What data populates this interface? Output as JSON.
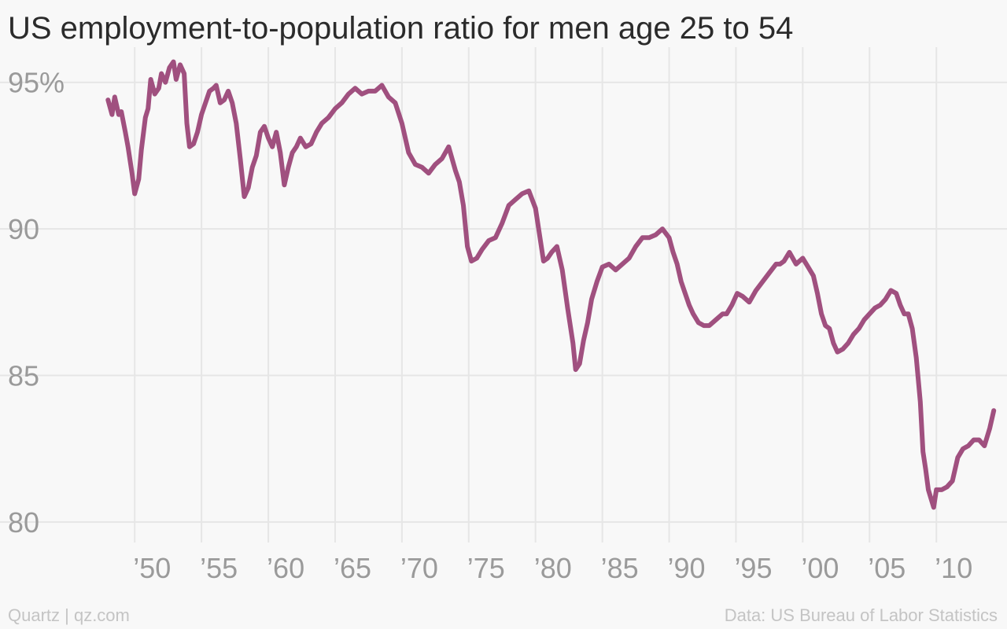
{
  "chart_data": {
    "type": "line",
    "title": "US employment-to-population ratio for men age 25 to 54",
    "xlabel": "",
    "ylabel": "",
    "y_ticks": [
      {
        "value": 95,
        "label": "95%"
      },
      {
        "value": 90,
        "label": "90"
      },
      {
        "value": 85,
        "label": "85"
      },
      {
        "value": 80,
        "label": "80"
      }
    ],
    "x_ticks": [
      {
        "value": 1950,
        "label": "’50"
      },
      {
        "value": 1955,
        "label": "’55"
      },
      {
        "value": 1960,
        "label": "’60"
      },
      {
        "value": 1965,
        "label": "’65"
      },
      {
        "value": 1970,
        "label": "’70"
      },
      {
        "value": 1975,
        "label": "’75"
      },
      {
        "value": 1980,
        "label": "’80"
      },
      {
        "value": 1985,
        "label": "’85"
      },
      {
        "value": 1990,
        "label": "’90"
      },
      {
        "value": 1995,
        "label": "’95"
      },
      {
        "value": 2000,
        "label": "’00"
      },
      {
        "value": 2005,
        "label": "’05"
      },
      {
        "value": 2010,
        "label": "’10"
      }
    ],
    "xlim": [
      1946.1,
      2014.7
    ],
    "ylim": [
      79.3,
      96.2
    ],
    "grid": true,
    "line_color": "#a0507f",
    "series": [
      {
        "name": "",
        "x": [
          1948.0,
          1948.3,
          1948.5,
          1948.8,
          1949.0,
          1949.3,
          1949.5,
          1949.8,
          1950.0,
          1950.3,
          1950.5,
          1950.8,
          1951.0,
          1951.2,
          1951.5,
          1951.8,
          1952.0,
          1952.3,
          1952.6,
          1952.9,
          1953.1,
          1953.4,
          1953.7,
          1953.9,
          1954.1,
          1954.4,
          1954.7,
          1955.0,
          1955.3,
          1955.6,
          1955.9,
          1956.1,
          1956.4,
          1956.7,
          1957.0,
          1957.3,
          1957.6,
          1957.9,
          1958.2,
          1958.5,
          1958.8,
          1959.1,
          1959.4,
          1959.7,
          1960.0,
          1960.3,
          1960.6,
          1960.9,
          1961.2,
          1961.5,
          1961.8,
          1962.1,
          1962.4,
          1962.8,
          1963.2,
          1963.6,
          1964.0,
          1964.5,
          1965.0,
          1965.5,
          1966.0,
          1966.5,
          1967.0,
          1967.5,
          1968.0,
          1968.5,
          1969.0,
          1969.5,
          1970.0,
          1970.5,
          1971.0,
          1971.5,
          1972.0,
          1972.5,
          1973.0,
          1973.5,
          1974.0,
          1974.3,
          1974.6,
          1974.9,
          1975.2,
          1975.6,
          1976.0,
          1976.5,
          1977.0,
          1977.5,
          1978.0,
          1978.5,
          1979.0,
          1979.5,
          1980.0,
          1980.3,
          1980.6,
          1980.9,
          1981.2,
          1981.6,
          1982.0,
          1982.4,
          1982.8,
          1983.0,
          1983.3,
          1983.6,
          1983.9,
          1984.2,
          1984.6,
          1985.0,
          1985.5,
          1986.0,
          1986.5,
          1987.0,
          1987.5,
          1988.0,
          1988.5,
          1989.0,
          1989.5,
          1990.0,
          1990.3,
          1990.6,
          1990.9,
          1991.2,
          1991.5,
          1991.8,
          1992.2,
          1992.6,
          1993.0,
          1993.5,
          1994.0,
          1994.3,
          1994.7,
          1995.1,
          1995.5,
          1996.0,
          1996.5,
          1997.0,
          1997.5,
          1998.0,
          1998.3,
          1998.6,
          1999.0,
          1999.5,
          2000.0,
          2000.4,
          2000.8,
          2001.1,
          2001.4,
          2001.7,
          2002.0,
          2002.3,
          2002.6,
          2003.0,
          2003.4,
          2003.8,
          2004.2,
          2004.6,
          2005.0,
          2005.4,
          2005.8,
          2006.2,
          2006.6,
          2007.0,
          2007.3,
          2007.6,
          2007.9,
          2008.2,
          2008.5,
          2008.8,
          2009.0,
          2009.2,
          2009.4,
          2009.6,
          2009.8,
          2010.0,
          2010.4,
          2010.8,
          2011.2,
          2011.6,
          2012.0,
          2012.4,
          2012.8,
          2013.2,
          2013.6,
          2014.0,
          2014.3
        ],
        "values": [
          94.4,
          93.9,
          94.5,
          93.9,
          94.0,
          93.3,
          92.8,
          91.9,
          91.2,
          91.7,
          92.7,
          93.8,
          94.1,
          95.1,
          94.6,
          94.8,
          95.3,
          95.0,
          95.5,
          95.7,
          95.1,
          95.6,
          95.3,
          93.6,
          92.8,
          92.9,
          93.3,
          93.9,
          94.3,
          94.7,
          94.8,
          94.9,
          94.3,
          94.4,
          94.7,
          94.3,
          93.6,
          92.4,
          91.1,
          91.4,
          92.1,
          92.5,
          93.3,
          93.5,
          93.1,
          92.8,
          93.3,
          92.6,
          91.5,
          92.1,
          92.6,
          92.8,
          93.1,
          92.8,
          92.9,
          93.3,
          93.6,
          93.8,
          94.1,
          94.3,
          94.6,
          94.8,
          94.6,
          94.7,
          94.7,
          94.9,
          94.5,
          94.3,
          93.6,
          92.6,
          92.2,
          92.1,
          91.9,
          92.2,
          92.4,
          92.8,
          92.0,
          91.6,
          90.8,
          89.4,
          88.9,
          89.0,
          89.3,
          89.6,
          89.7,
          90.2,
          90.8,
          91.0,
          91.2,
          91.3,
          90.7,
          89.8,
          88.9,
          89.0,
          89.2,
          89.4,
          88.6,
          87.3,
          86.1,
          85.2,
          85.4,
          86.2,
          86.8,
          87.6,
          88.2,
          88.7,
          88.8,
          88.6,
          88.8,
          89.0,
          89.4,
          89.7,
          89.7,
          89.8,
          90.0,
          89.7,
          89.2,
          88.8,
          88.2,
          87.8,
          87.4,
          87.1,
          86.8,
          86.7,
          86.7,
          86.9,
          87.1,
          87.1,
          87.4,
          87.8,
          87.7,
          87.5,
          87.9,
          88.2,
          88.5,
          88.8,
          88.8,
          88.9,
          89.2,
          88.8,
          89.0,
          88.7,
          88.4,
          87.8,
          87.1,
          86.7,
          86.6,
          86.1,
          85.8,
          85.9,
          86.1,
          86.4,
          86.6,
          86.9,
          87.1,
          87.3,
          87.4,
          87.6,
          87.9,
          87.8,
          87.4,
          87.1,
          87.1,
          86.6,
          85.6,
          84.1,
          82.4,
          81.8,
          81.1,
          80.8,
          80.5,
          81.1,
          81.1,
          81.2,
          81.4,
          82.2,
          82.5,
          82.6,
          82.8,
          82.8,
          82.6,
          83.2,
          83.8
        ]
      }
    ]
  },
  "footer": {
    "source_left": "Quartz | qz.com",
    "source_right": "Data: US Bureau of Labor Statistics"
  }
}
